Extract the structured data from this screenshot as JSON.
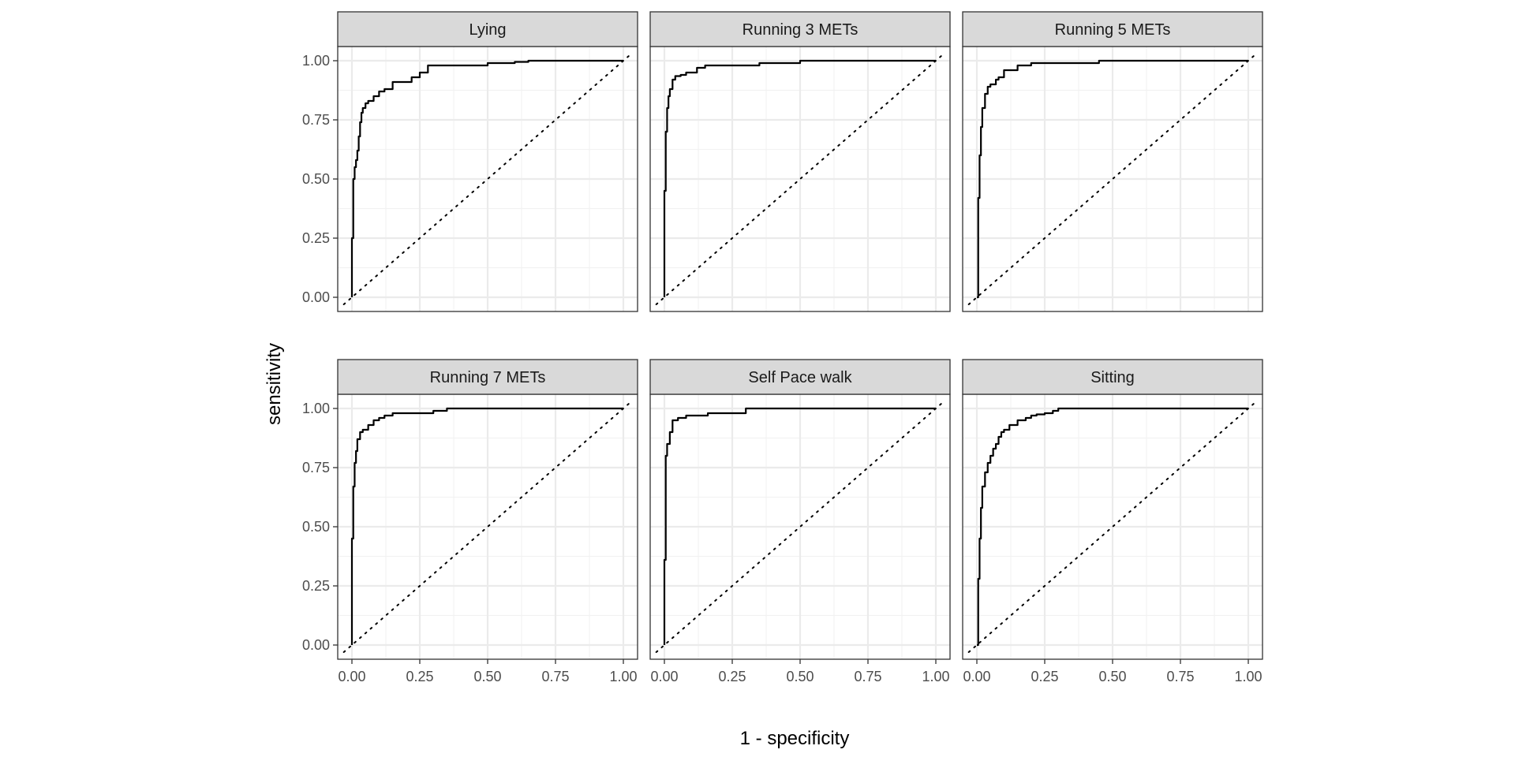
{
  "chart_data": {
    "type": "line",
    "xlabel": "1 - specificity",
    "ylabel": "sensitivity",
    "xlim": [
      0,
      1
    ],
    "ylim": [
      0,
      1
    ],
    "x_ticks": [
      "0.00",
      "0.25",
      "0.50",
      "0.75",
      "1.00"
    ],
    "y_ticks": [
      "0.00",
      "0.25",
      "0.50",
      "0.75",
      "1.00"
    ],
    "grid": true,
    "reference_line": "diagonal (dotted)",
    "panels": [
      {
        "title": "Lying",
        "x": [
          0,
          0,
          0.005,
          0.01,
          0.015,
          0.02,
          0.025,
          0.03,
          0.035,
          0.04,
          0.05,
          0.06,
          0.08,
          0.1,
          0.12,
          0.15,
          0.2,
          0.22,
          0.25,
          0.28,
          0.45,
          0.5,
          0.6,
          0.65,
          1.0
        ],
        "y": [
          0,
          0.25,
          0.5,
          0.55,
          0.58,
          0.62,
          0.68,
          0.74,
          0.78,
          0.8,
          0.82,
          0.83,
          0.85,
          0.87,
          0.88,
          0.91,
          0.91,
          0.93,
          0.95,
          0.98,
          0.98,
          0.99,
          0.995,
          1.0,
          1.0
        ]
      },
      {
        "title": "Running 3 METs",
        "x": [
          0,
          0,
          0.005,
          0.01,
          0.015,
          0.02,
          0.03,
          0.04,
          0.06,
          0.08,
          0.12,
          0.15,
          0.3,
          0.35,
          0.45,
          0.5,
          1.0
        ],
        "y": [
          0,
          0.45,
          0.7,
          0.8,
          0.85,
          0.88,
          0.92,
          0.935,
          0.94,
          0.95,
          0.97,
          0.98,
          0.98,
          0.99,
          0.99,
          1.0,
          1.0
        ]
      },
      {
        "title": "Running 5 METs",
        "x": [
          0,
          0.005,
          0.01,
          0.015,
          0.02,
          0.03,
          0.04,
          0.05,
          0.07,
          0.08,
          0.1,
          0.12,
          0.15,
          0.2,
          0.4,
          0.45,
          1.0
        ],
        "y": [
          0,
          0.42,
          0.6,
          0.72,
          0.8,
          0.86,
          0.89,
          0.9,
          0.92,
          0.93,
          0.96,
          0.96,
          0.98,
          0.99,
          0.99,
          1.0,
          1.0
        ]
      },
      {
        "title": "Running 7 METs",
        "x": [
          0,
          0,
          0.005,
          0.01,
          0.015,
          0.02,
          0.03,
          0.04,
          0.06,
          0.08,
          0.1,
          0.12,
          0.15,
          0.2,
          0.3,
          0.35,
          1.0
        ],
        "y": [
          0,
          0.45,
          0.67,
          0.77,
          0.82,
          0.87,
          0.9,
          0.91,
          0.93,
          0.95,
          0.96,
          0.97,
          0.98,
          0.98,
          0.99,
          1.0,
          1.0
        ]
      },
      {
        "title": "Self Pace walk",
        "x": [
          0,
          0,
          0.005,
          0.01,
          0.02,
          0.03,
          0.05,
          0.08,
          0.14,
          0.16,
          0.25,
          0.3,
          1.0
        ],
        "y": [
          0,
          0.36,
          0.8,
          0.85,
          0.9,
          0.95,
          0.96,
          0.97,
          0.97,
          0.98,
          0.98,
          1.0,
          1.0
        ]
      },
      {
        "title": "Sitting",
        "x": [
          0,
          0.005,
          0.01,
          0.015,
          0.02,
          0.03,
          0.04,
          0.05,
          0.06,
          0.07,
          0.08,
          0.09,
          0.1,
          0.12,
          0.15,
          0.18,
          0.2,
          0.22,
          0.25,
          0.28,
          0.3,
          1.0
        ],
        "y": [
          0,
          0.28,
          0.45,
          0.58,
          0.67,
          0.73,
          0.77,
          0.8,
          0.83,
          0.85,
          0.88,
          0.9,
          0.91,
          0.93,
          0.95,
          0.96,
          0.97,
          0.975,
          0.98,
          0.99,
          1.0,
          1.0
        ]
      }
    ]
  }
}
